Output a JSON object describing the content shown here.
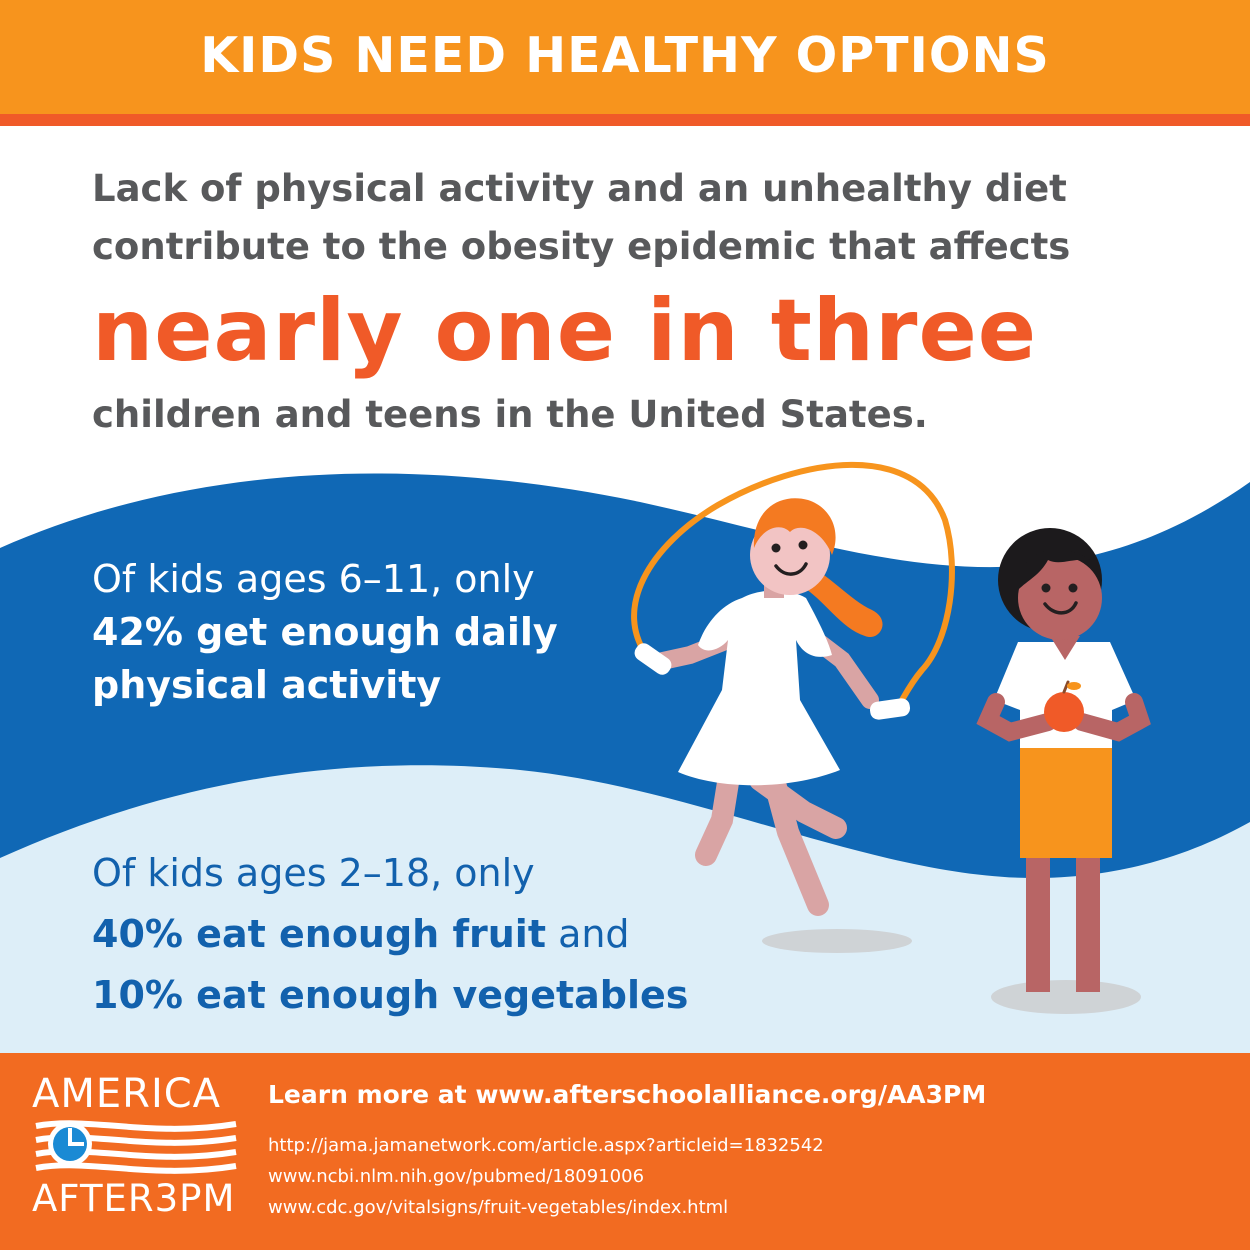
{
  "header": {
    "title": "KIDS NEED HEALTHY OPTIONS"
  },
  "intro": {
    "line1": "Lack of physical activity and an unhealthy diet",
    "line2": "contribute to the obesity epidemic that affects",
    "highlight": "nearly one in three",
    "line3": "children and teens in the United States."
  },
  "stat_activity": {
    "line1": "Of kids ages 6–11, only",
    "line2": "42% get enough daily",
    "line3": "physical activity"
  },
  "stat_diet": {
    "line1": "Of kids ages 2–18, only",
    "line2_bold": "40% eat enough fruit",
    "line2_rest": " and",
    "line3": "10% eat enough vegetables"
  },
  "footer": {
    "cta": "Learn more at www.afterschoolalliance.org/AA3PM",
    "sources": [
      "http://jama.jamanetwork.com/article.aspx?articleid=1832542",
      "www.ncbi.nlm.nih.gov/pubmed/18091006",
      "www.cdc.gov/vitalsigns/fruit-vegetables/index.html"
    ],
    "logo_top": "AMERICA",
    "logo_bottom": "AFTER3PM"
  },
  "colors": {
    "header_orange": "#f7941d",
    "accent_orange": "#f05a28",
    "footer_orange": "#f26b21",
    "blue_wave": "#1068b5",
    "light_blue_wave": "#ddeef8",
    "text_gray": "#58595b",
    "text_blue": "#1261ad"
  },
  "illustrations": {
    "girl": "girl-jumping-rope-illustration",
    "boy": "boy-holding-apple-illustration"
  }
}
